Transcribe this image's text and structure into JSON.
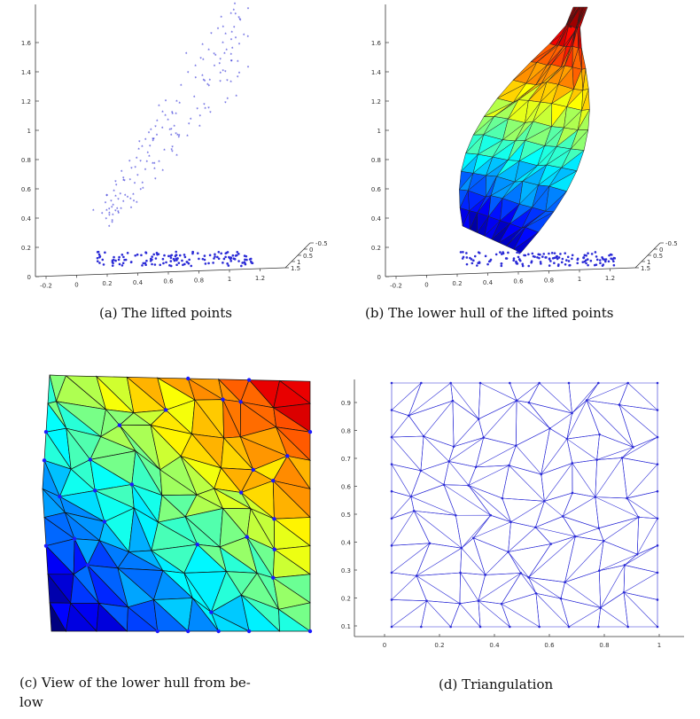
{
  "figure": {
    "panels": [
      {
        "id": "a",
        "caption": "(a)  The lifted points",
        "type": "3d-scatter",
        "y_ticks": [
          "0",
          "0.2",
          "0.4",
          "0.6",
          "0.8",
          "1",
          "1.2",
          "1.4",
          "1.6"
        ],
        "x_ticks": [
          "-0.2",
          "0",
          "0.2",
          "0.4",
          "0.6",
          "0.8",
          "1",
          "1.2"
        ],
        "depth_ticks": [
          "-0.5",
          "0",
          "0.5",
          "1",
          "1.5"
        ],
        "marker_color": "#2b2bd6"
      },
      {
        "id": "b",
        "caption": "(b)  The lower hull of the lifted points",
        "type": "3d-surface",
        "y_ticks": [
          "0",
          "0.2",
          "0.4",
          "0.6",
          "0.8",
          "1",
          "1.2",
          "1.4",
          "1.6"
        ],
        "x_ticks": [
          "-0.2",
          "0",
          "0.2",
          "0.4",
          "0.6",
          "0.8",
          "1",
          "1.2"
        ],
        "depth_ticks": [
          "-0.5",
          "0",
          "0.5",
          "1",
          "1.5"
        ],
        "colormap": "jet"
      },
      {
        "id": "c",
        "caption_line1": "(c)  View of the lower hull from be-",
        "caption_line2": "low",
        "type": "3d-surface-bottom-view",
        "colormap": "jet"
      },
      {
        "id": "d",
        "caption": "(d)  Triangulation",
        "type": "2d-triangulation",
        "x_ticks": [
          "0",
          "0.2",
          "0.4",
          "0.6",
          "0.8",
          "1"
        ],
        "y_ticks": [
          "0.1",
          "0.2",
          "0.3",
          "0.4",
          "0.5",
          "0.6",
          "0.7",
          "0.8",
          "0.9"
        ],
        "line_color": "#2b2bd6"
      }
    ]
  }
}
